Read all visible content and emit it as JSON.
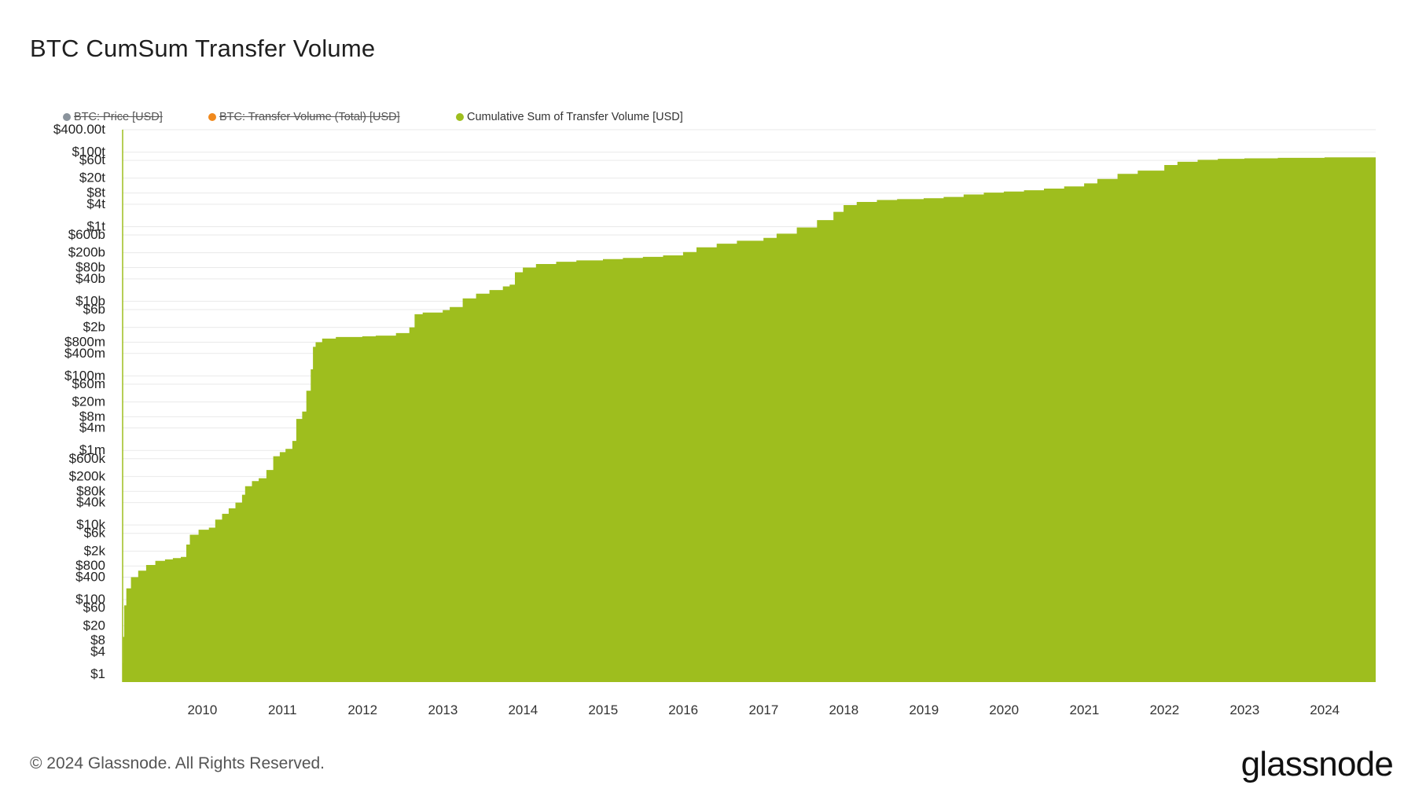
{
  "chart_data": {
    "type": "area",
    "title": "BTC CumSum Transfer Volume",
    "xlabel": "",
    "ylabel": "",
    "y_scale": "log",
    "ylim": [
      0.5,
      400000000000000
    ],
    "xlim": [
      "2009-01-03",
      "2024-08-20"
    ],
    "grid": true,
    "legend_position": "top-left",
    "colors": {
      "area": "#9ebe1e",
      "price": "#8a939c",
      "transfer": "#f0891d",
      "grid": "#e9e9e9"
    },
    "legend": [
      {
        "label": "BTC: Price [USD]",
        "color": "#8a939c",
        "hidden": true
      },
      {
        "label": "BTC: Transfer Volume (Total) [USD]",
        "color": "#f0891d",
        "hidden": true
      },
      {
        "label": "Cumulative Sum of Transfer Volume [USD]",
        "color": "#9ebe1e",
        "hidden": false
      }
    ],
    "y_ticks": [
      {
        "label": "$400.00t",
        "value": 400000000000000
      },
      {
        "label": "$100t",
        "value": 100000000000000
      },
      {
        "label": "$60t",
        "value": 60000000000000
      },
      {
        "label": "$20t",
        "value": 20000000000000
      },
      {
        "label": "$8t",
        "value": 8000000000000
      },
      {
        "label": "$4t",
        "value": 4000000000000
      },
      {
        "label": "$1t",
        "value": 1000000000000
      },
      {
        "label": "$600b",
        "value": 600000000000
      },
      {
        "label": "$200b",
        "value": 200000000000
      },
      {
        "label": "$80b",
        "value": 80000000000
      },
      {
        "label": "$40b",
        "value": 40000000000
      },
      {
        "label": "$10b",
        "value": 10000000000
      },
      {
        "label": "$6b",
        "value": 6000000000
      },
      {
        "label": "$2b",
        "value": 2000000000
      },
      {
        "label": "$800m",
        "value": 800000000
      },
      {
        "label": "$400m",
        "value": 400000000
      },
      {
        "label": "$100m",
        "value": 100000000
      },
      {
        "label": "$60m",
        "value": 60000000
      },
      {
        "label": "$20m",
        "value": 20000000
      },
      {
        "label": "$8m",
        "value": 8000000
      },
      {
        "label": "$4m",
        "value": 4000000
      },
      {
        "label": "$1m",
        "value": 1000000
      },
      {
        "label": "$600k",
        "value": 600000
      },
      {
        "label": "$200k",
        "value": 200000
      },
      {
        "label": "$80k",
        "value": 80000
      },
      {
        "label": "$40k",
        "value": 40000
      },
      {
        "label": "$10k",
        "value": 10000
      },
      {
        "label": "$6k",
        "value": 6000
      },
      {
        "label": "$2k",
        "value": 2000
      },
      {
        "label": "$800",
        "value": 800
      },
      {
        "label": "$400",
        "value": 400
      },
      {
        "label": "$100",
        "value": 100
      },
      {
        "label": "$60",
        "value": 60
      },
      {
        "label": "$20",
        "value": 20
      },
      {
        "label": "$8",
        "value": 8
      },
      {
        "label": "$4",
        "value": 4
      },
      {
        "label": "$1",
        "value": 1
      }
    ],
    "x_ticks": [
      "2010",
      "2011",
      "2012",
      "2013",
      "2014",
      "2015",
      "2016",
      "2017",
      "2018",
      "2019",
      "2020",
      "2021",
      "2022",
      "2023",
      "2024"
    ],
    "series": [
      {
        "name": "Cumulative Sum of Transfer Volume [USD]",
        "points": [
          [
            "2009-01-03",
            2
          ],
          [
            "2009-01-05",
            10
          ],
          [
            "2009-01-10",
            70
          ],
          [
            "2009-01-20",
            200
          ],
          [
            "2009-02-10",
            400
          ],
          [
            "2009-03-15",
            600
          ],
          [
            "2009-04-20",
            850
          ],
          [
            "2009-06-01",
            1100
          ],
          [
            "2009-07-15",
            1200
          ],
          [
            "2009-08-20",
            1300
          ],
          [
            "2009-09-25",
            1400
          ],
          [
            "2009-10-20",
            3000
          ],
          [
            "2009-11-05",
            5500
          ],
          [
            "2009-12-15",
            7500
          ],
          [
            "2010-01-31",
            8500
          ],
          [
            "2010-03-01",
            14000
          ],
          [
            "2010-04-01",
            20000
          ],
          [
            "2010-05-01",
            28000
          ],
          [
            "2010-06-01",
            40000
          ],
          [
            "2010-07-01",
            65000
          ],
          [
            "2010-07-15",
            110000
          ],
          [
            "2010-08-15",
            150000
          ],
          [
            "2010-09-15",
            180000
          ],
          [
            "2010-10-20",
            300000
          ],
          [
            "2010-11-20",
            700000
          ],
          [
            "2010-12-20",
            900000
          ],
          [
            "2011-01-15",
            1100000
          ],
          [
            "2011-02-15",
            1800000
          ],
          [
            "2011-03-05",
            7000000
          ],
          [
            "2011-04-01",
            11000000
          ],
          [
            "2011-04-20",
            40000000
          ],
          [
            "2011-05-10",
            150000000
          ],
          [
            "2011-05-20",
            600000000
          ],
          [
            "2011-06-01",
            800000000
          ],
          [
            "2011-07-01",
            1000000000
          ],
          [
            "2011-09-01",
            1100000000
          ],
          [
            "2011-12-31",
            1150000000
          ],
          [
            "2012-03-01",
            1200000000
          ],
          [
            "2012-06-01",
            1400000000
          ],
          [
            "2012-08-01",
            2000000000
          ],
          [
            "2012-08-25",
            4500000000
          ],
          [
            "2012-10-01",
            5000000000
          ],
          [
            "2012-12-31",
            5800000000
          ],
          [
            "2013-02-01",
            7000000000
          ],
          [
            "2013-04-01",
            12000000000
          ],
          [
            "2013-06-01",
            16000000000
          ],
          [
            "2013-08-01",
            20000000000
          ],
          [
            "2013-10-01",
            25000000000
          ],
          [
            "2013-11-01",
            28000000000
          ],
          [
            "2013-11-25",
            60000000000
          ],
          [
            "2013-12-31",
            80000000000
          ],
          [
            "2014-03-01",
            100000000000
          ],
          [
            "2014-06-01",
            115000000000
          ],
          [
            "2014-09-01",
            125000000000
          ],
          [
            "2014-12-31",
            135000000000
          ],
          [
            "2015-04-01",
            145000000000
          ],
          [
            "2015-07-01",
            155000000000
          ],
          [
            "2015-10-01",
            170000000000
          ],
          [
            "2015-12-31",
            210000000000
          ],
          [
            "2016-03-01",
            280000000000
          ],
          [
            "2016-06-01",
            350000000000
          ],
          [
            "2016-09-01",
            420000000000
          ],
          [
            "2016-12-31",
            500000000000
          ],
          [
            "2017-03-01",
            650000000000
          ],
          [
            "2017-06-01",
            950000000000
          ],
          [
            "2017-09-01",
            1500000000000
          ],
          [
            "2017-11-15",
            2500000000000
          ],
          [
            "2017-12-31",
            3800000000000
          ],
          [
            "2018-03-01",
            4600000000000
          ],
          [
            "2018-06-01",
            5200000000000
          ],
          [
            "2018-09-01",
            5500000000000
          ],
          [
            "2018-12-31",
            5800000000000
          ],
          [
            "2019-04-01",
            6300000000000
          ],
          [
            "2019-07-01",
            7300000000000
          ],
          [
            "2019-10-01",
            8200000000000
          ],
          [
            "2019-12-31",
            8800000000000
          ],
          [
            "2020-04-01",
            9500000000000
          ],
          [
            "2020-07-01",
            10500000000000
          ],
          [
            "2020-10-01",
            12000000000000
          ],
          [
            "2020-12-31",
            14500000000000
          ],
          [
            "2021-03-01",
            19000000000000
          ],
          [
            "2021-06-01",
            26000000000000
          ],
          [
            "2021-09-01",
            32000000000000
          ],
          [
            "2021-12-31",
            45000000000000
          ],
          [
            "2022-03-01",
            55000000000000
          ],
          [
            "2022-06-01",
            62000000000000
          ],
          [
            "2022-09-01",
            66000000000000
          ],
          [
            "2022-12-31",
            68000000000000
          ],
          [
            "2023-06-01",
            70000000000000
          ],
          [
            "2023-12-31",
            72000000000000
          ],
          [
            "2024-08-20",
            74000000000000
          ]
        ]
      }
    ]
  },
  "footer": {
    "copyright": "© 2024 Glassnode. All Rights Reserved."
  },
  "brand": {
    "logo_text": "glassnode"
  }
}
